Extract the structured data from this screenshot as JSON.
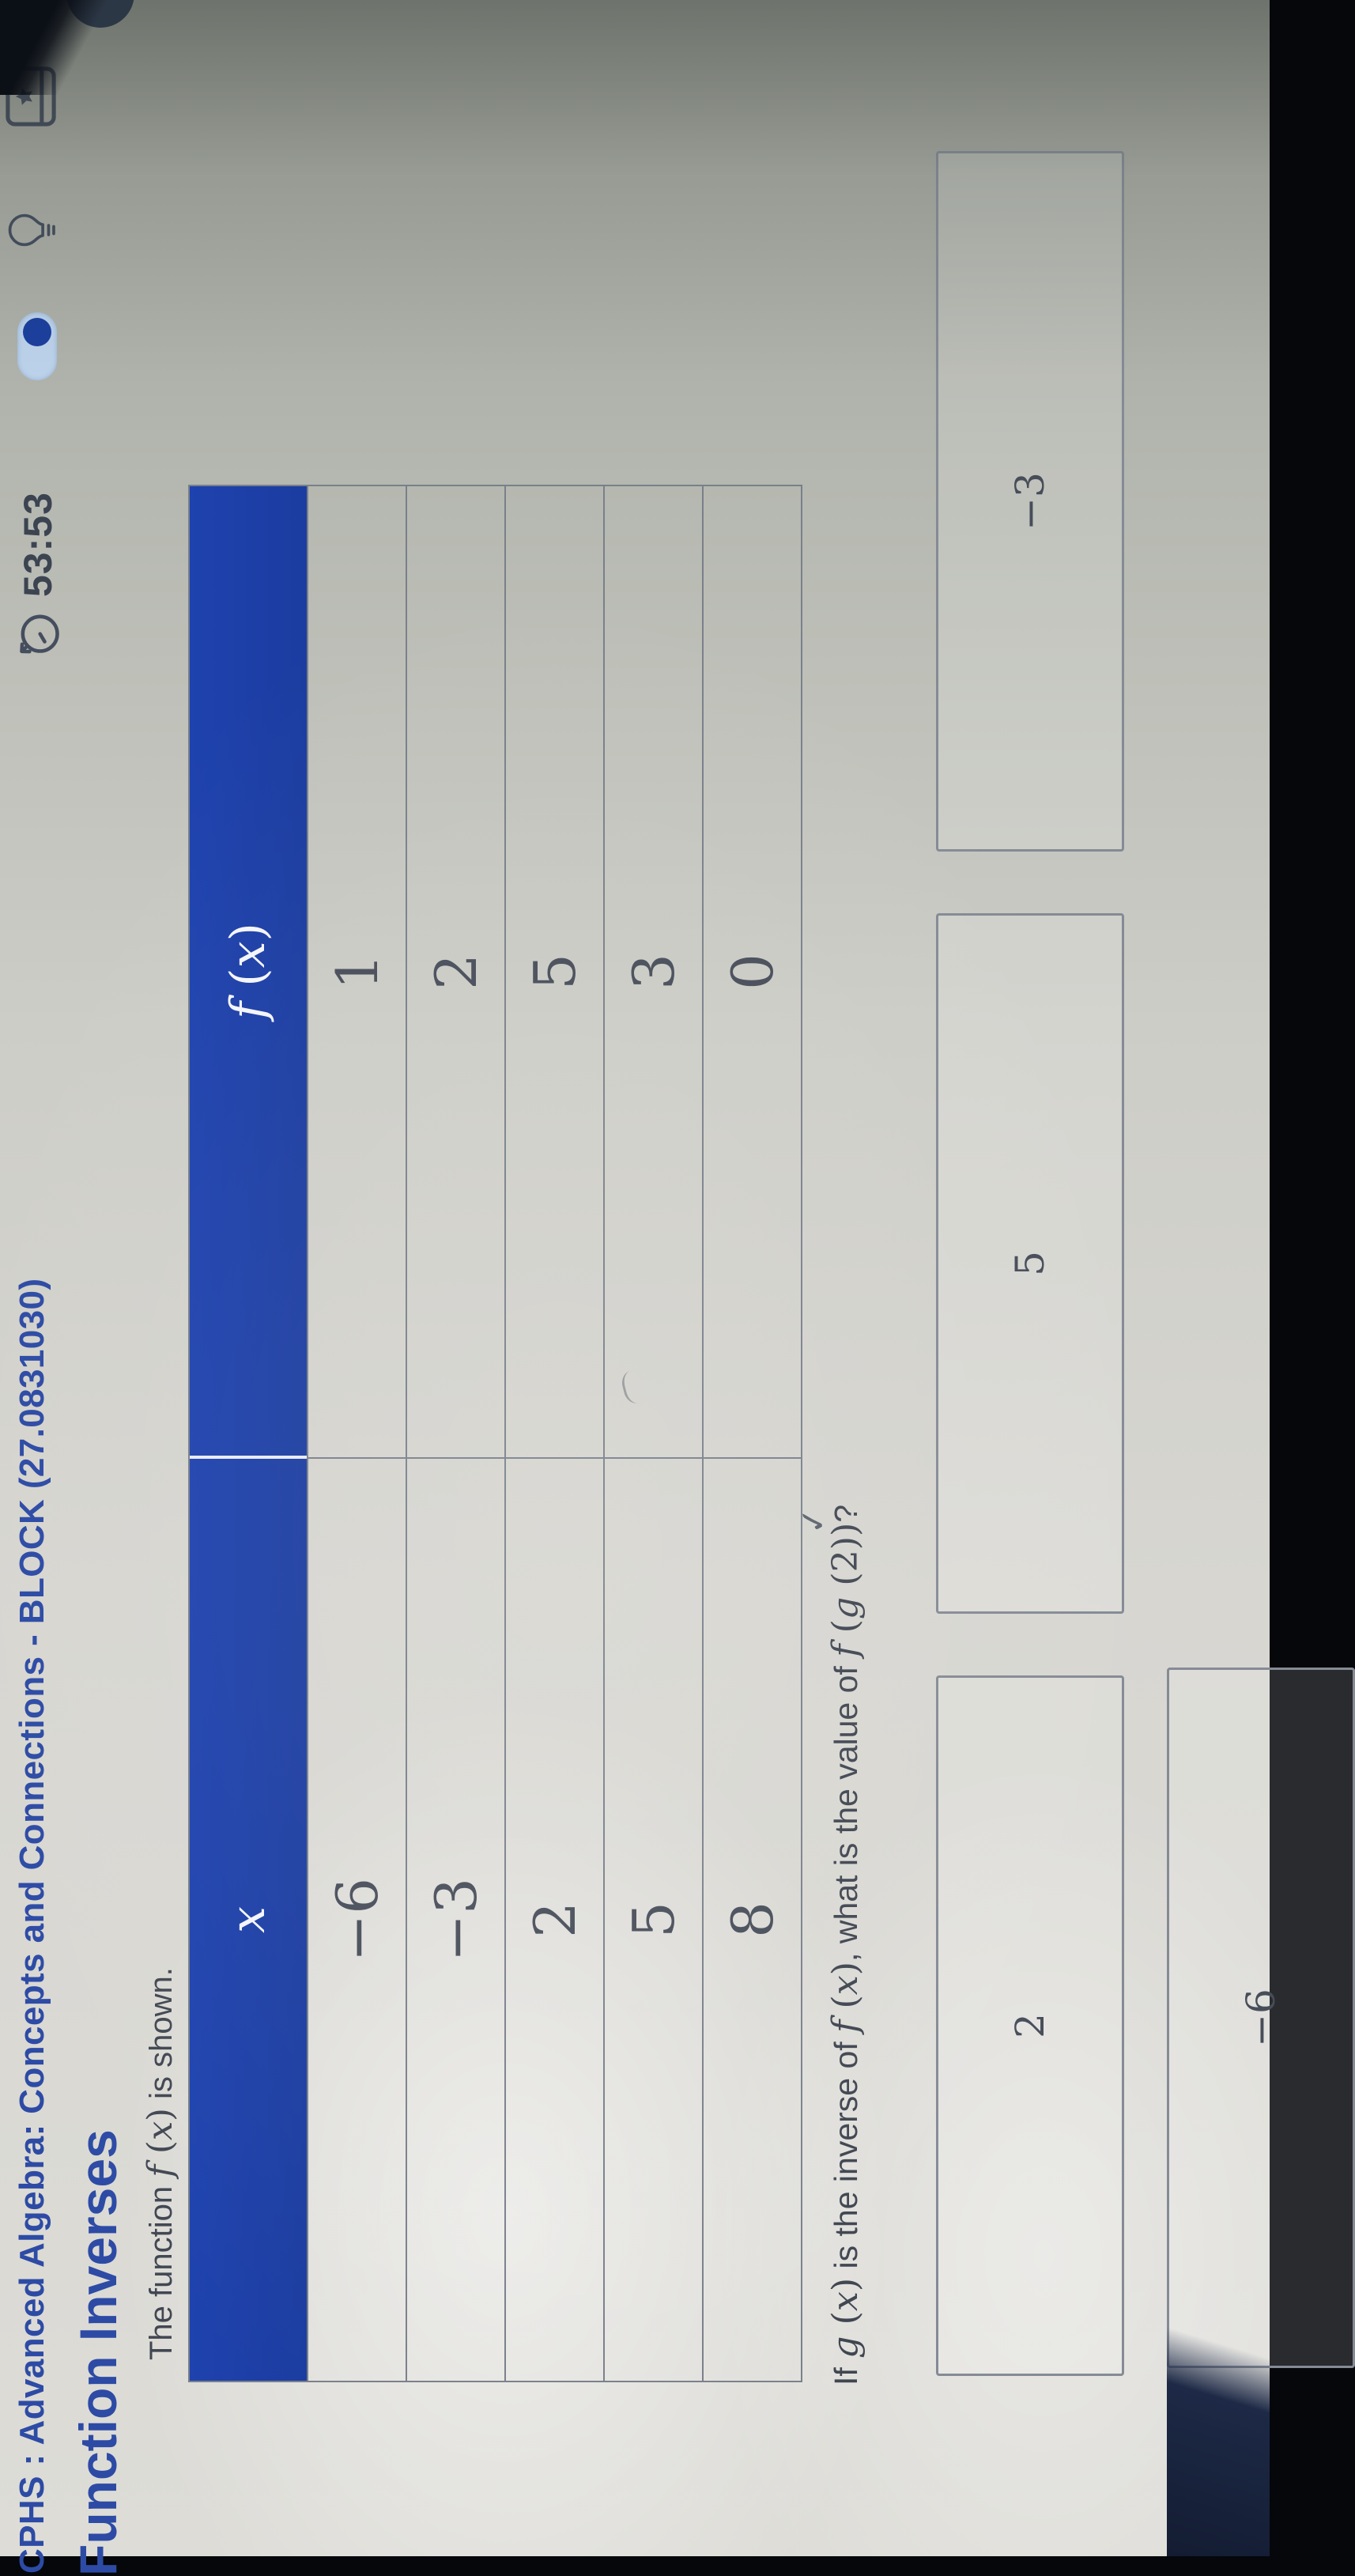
{
  "topbar": {
    "course_title": "CPHS : Advanced Algebra: Concepts and Connections - BLOCK (27.0831030)",
    "timer": "53:53"
  },
  "page": {
    "title": "Function Inverses",
    "intro_parts": [
      {
        "k": "t",
        "v": "The function "
      },
      {
        "k": "m",
        "v": "f (x)"
      },
      {
        "k": "t",
        "v": " is shown."
      }
    ]
  },
  "table": {
    "headers": [
      "x",
      "f (x)"
    ],
    "rows": [
      [
        "−6",
        "1"
      ],
      [
        "−3",
        "2"
      ],
      [
        "2",
        "5"
      ],
      [
        "5",
        "3"
      ],
      [
        "8",
        "0"
      ]
    ]
  },
  "question_parts": [
    {
      "k": "t",
      "v": "If "
    },
    {
      "k": "m",
      "v": "g (x)"
    },
    {
      "k": "t",
      "v": " is the inverse of "
    },
    {
      "k": "m",
      "v": "f (x)"
    },
    {
      "k": "t",
      "v": ", what is the value of "
    },
    {
      "k": "m",
      "v": "f (g (2))"
    },
    {
      "k": "t",
      "v": "?"
    }
  ],
  "answers": [
    {
      "label": "2"
    },
    {
      "label": "5"
    },
    {
      "label": "−3"
    },
    {
      "label": "−6"
    }
  ],
  "annotations": {
    "checkmark": "✓"
  },
  "colors": {
    "header_blue": "#1d40a8",
    "title_blue": "#2d4ba5",
    "text": "#414752",
    "grid": "#79808a"
  }
}
